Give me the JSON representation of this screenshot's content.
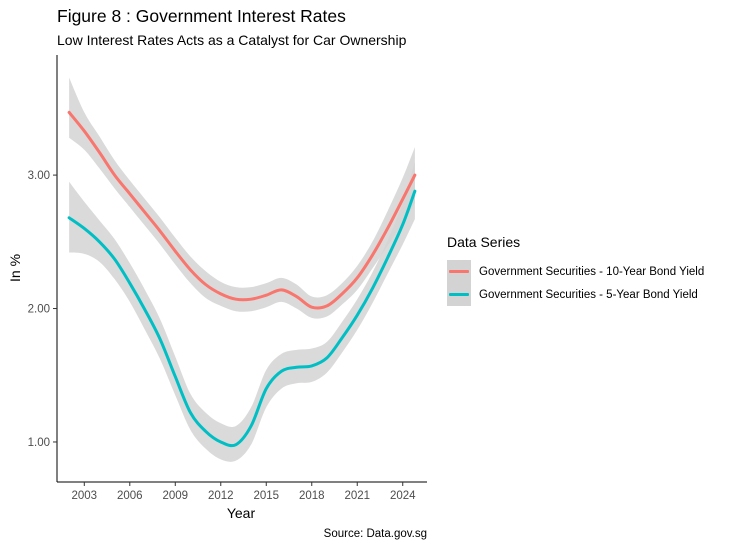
{
  "chart_data": {
    "type": "line",
    "title": "Figure 8 : Government Interest Rates",
    "subtitle": "Low Interest Rates Acts as a Catalyst for Car Ownership",
    "xlabel": "Year",
    "ylabel": "In %",
    "caption": "Source: Data.gov.sg",
    "legend_title": "Data Series",
    "legend_position": "right",
    "grid": false,
    "xlim": [
      2001.2,
      2025.6
    ],
    "ylim": [
      0.7,
      3.9
    ],
    "x_ticks": [
      2003,
      2006,
      2009,
      2012,
      2015,
      2018,
      2021,
      2024
    ],
    "y_ticks": [
      1.0,
      2.0,
      3.0
    ],
    "y_tick_labels": [
      "1.00",
      "2.00",
      "3.00"
    ],
    "band_color": "#d3d3d3",
    "series": [
      {
        "name": "Government Securities - 10-Year Bond Yield",
        "color": "#f8766d",
        "x": [
          2002,
          2003,
          2004,
          2005,
          2006,
          2007,
          2008,
          2009,
          2010,
          2011,
          2012,
          2013,
          2014,
          2015,
          2016,
          2017,
          2018,
          2019,
          2020,
          2021,
          2022,
          2023,
          2024,
          2024.8
        ],
        "y": [
          3.47,
          3.33,
          3.17,
          3.0,
          2.86,
          2.72,
          2.58,
          2.43,
          2.29,
          2.18,
          2.11,
          2.07,
          2.07,
          2.1,
          2.14,
          2.09,
          2.01,
          2.02,
          2.11,
          2.23,
          2.4,
          2.6,
          2.82,
          3.0
        ],
        "lower": [
          3.28,
          3.19,
          3.05,
          2.9,
          2.76,
          2.62,
          2.48,
          2.33,
          2.19,
          2.08,
          2.02,
          1.98,
          1.98,
          2.01,
          2.05,
          2.0,
          1.93,
          1.94,
          2.03,
          2.14,
          2.3,
          2.47,
          2.64,
          2.79
        ],
        "upper": [
          3.73,
          3.47,
          3.29,
          3.11,
          2.96,
          2.82,
          2.68,
          2.53,
          2.39,
          2.28,
          2.2,
          2.16,
          2.16,
          2.19,
          2.23,
          2.18,
          2.09,
          2.1,
          2.19,
          2.32,
          2.5,
          2.73,
          2.98,
          3.21
        ]
      },
      {
        "name": "Government Securities - 5-Year Bond Yield",
        "color": "#00bfc4",
        "x": [
          2002,
          2003,
          2004,
          2005,
          2006,
          2007,
          2008,
          2009,
          2010,
          2011,
          2012,
          2013,
          2014,
          2015,
          2016,
          2017,
          2018,
          2019,
          2020,
          2021,
          2022,
          2023,
          2024,
          2024.8
        ],
        "y": [
          2.68,
          2.6,
          2.5,
          2.37,
          2.19,
          1.99,
          1.77,
          1.49,
          1.22,
          1.08,
          1.0,
          0.98,
          1.12,
          1.4,
          1.53,
          1.56,
          1.57,
          1.63,
          1.78,
          1.95,
          2.15,
          2.38,
          2.63,
          2.88
        ],
        "lower": [
          2.42,
          2.41,
          2.35,
          2.22,
          2.05,
          1.84,
          1.62,
          1.35,
          1.09,
          0.95,
          0.87,
          0.86,
          0.98,
          1.26,
          1.4,
          1.44,
          1.45,
          1.52,
          1.67,
          1.84,
          2.04,
          2.26,
          2.48,
          2.67
        ],
        "upper": [
          2.95,
          2.8,
          2.66,
          2.52,
          2.34,
          2.14,
          1.92,
          1.64,
          1.36,
          1.22,
          1.14,
          1.12,
          1.26,
          1.54,
          1.66,
          1.69,
          1.7,
          1.75,
          1.9,
          2.07,
          2.27,
          2.51,
          2.79,
          3.1
        ]
      }
    ]
  }
}
